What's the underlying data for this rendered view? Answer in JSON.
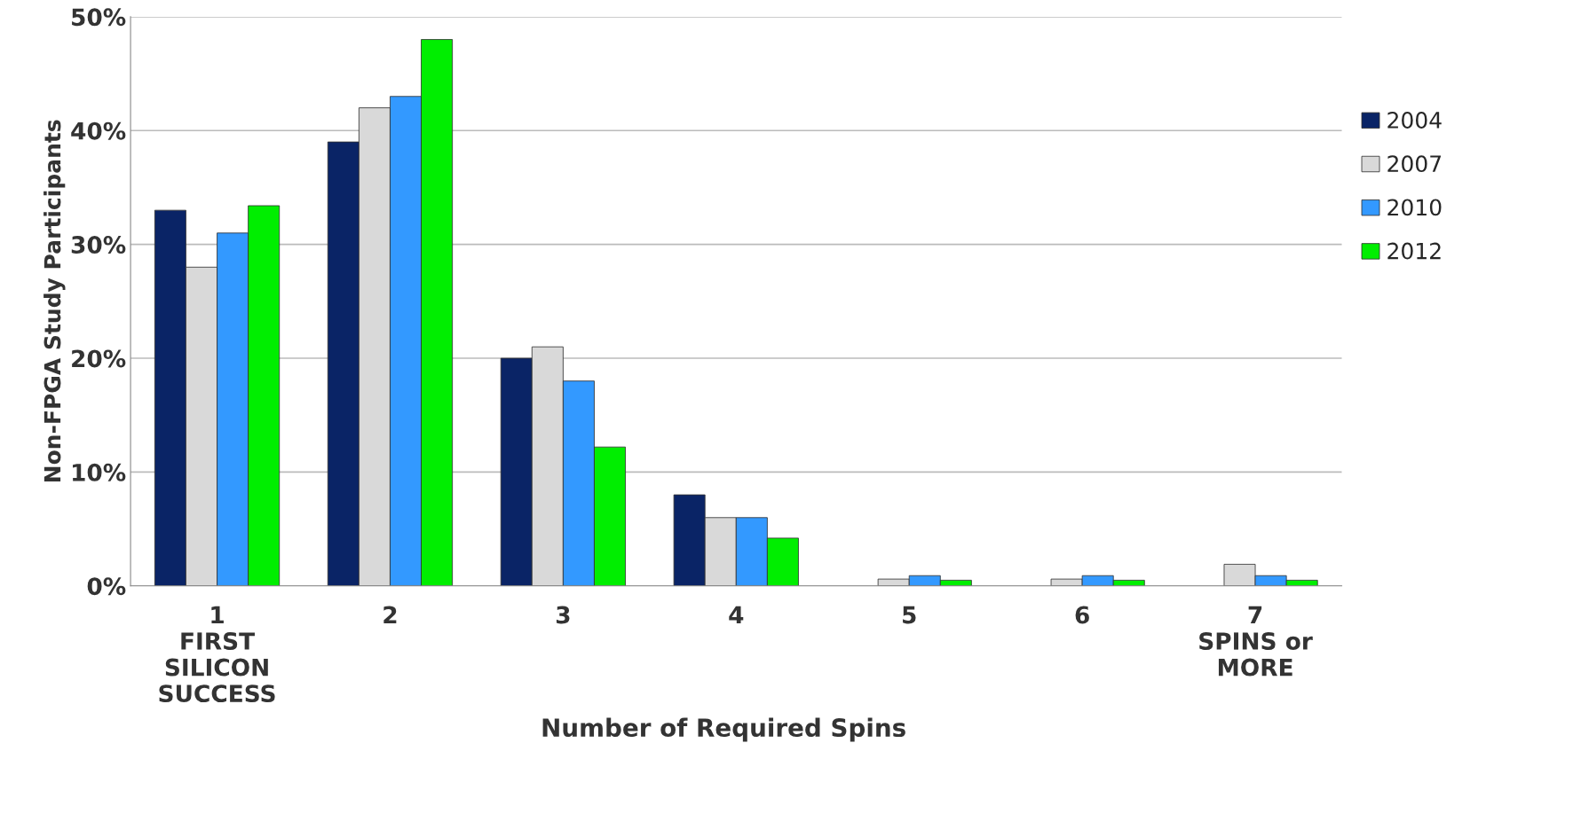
{
  "chart_data": {
    "type": "bar",
    "xlabel": "Number of Required Spins",
    "ylabel": "Non-FPGA Study Participants",
    "categories": [
      "1\nFIRST\nSILICON\nSUCCESS",
      "2",
      "3",
      "4",
      "5",
      "6",
      "7\nSPINS or\nMORE"
    ],
    "series": [
      {
        "name": "2004",
        "color": "#0a2466",
        "values": [
          33,
          39,
          20,
          8,
          null,
          null,
          null
        ]
      },
      {
        "name": "2007",
        "color": "#d9d9d9",
        "values": [
          28,
          42,
          21,
          6,
          0.6,
          0.6,
          1.9
        ]
      },
      {
        "name": "2010",
        "color": "#3399ff",
        "values": [
          31,
          43,
          18,
          6,
          0.9,
          0.9,
          0.9
        ]
      },
      {
        "name": "2012",
        "color": "#00ee00",
        "values": [
          33.4,
          48,
          12.2,
          4.2,
          0.5,
          0.5,
          0.5
        ]
      }
    ],
    "ylim": [
      0,
      50
    ],
    "yticks": [
      {
        "value": 0,
        "label": "0%"
      },
      {
        "value": 10,
        "label": "10%"
      },
      {
        "value": 20,
        "label": "20%"
      },
      {
        "value": 30,
        "label": "30%"
      },
      {
        "value": 40,
        "label": "40%"
      },
      {
        "value": 50,
        "label": "50%"
      }
    ],
    "grid": "y",
    "legend": "right"
  }
}
